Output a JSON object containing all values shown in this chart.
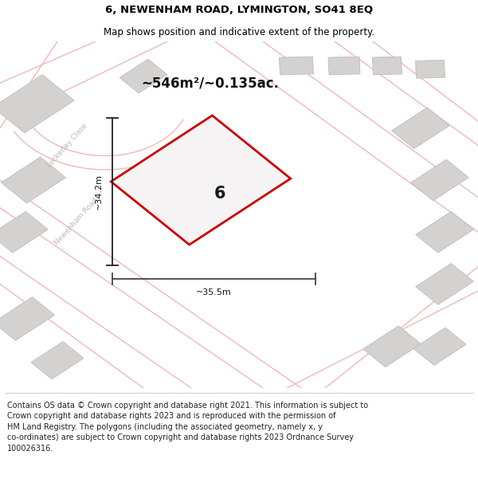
{
  "title": "6, NEWENHAM ROAD, LYMINGTON, SO41 8EQ",
  "subtitle": "Map shows position and indicative extent of the property.",
  "area_label": "~546m²/~0.135ac.",
  "property_number": "6",
  "dim_width": "~35.5m",
  "dim_height": "~34.2m",
  "footer": "Contains OS data © Crown copyright and database right 2021. This information is subject to\nCrown copyright and database rights 2023 and is reproduced with the permission of\nHM Land Registry. The polygons (including the associated geometry, namely x, y\nco-ordinates) are subject to Crown copyright and database rights 2023 Ordnance Survey\n100026316.",
  "map_bg": "#eae8e8",
  "road_color": "#f0b8b8",
  "building_color": "#d4d1d1",
  "building_edge": "#c0bcbc",
  "property_fill": "#f5f3f3",
  "property_edge": "#cc0000",
  "footer_bg": "#ffffff",
  "title_fontsize": 9.5,
  "subtitle_fontsize": 8.5,
  "area_fontsize": 12,
  "number_fontsize": 15,
  "dim_fontsize": 8,
  "road_label_fontsize": 6.5,
  "footer_fontsize": 7
}
